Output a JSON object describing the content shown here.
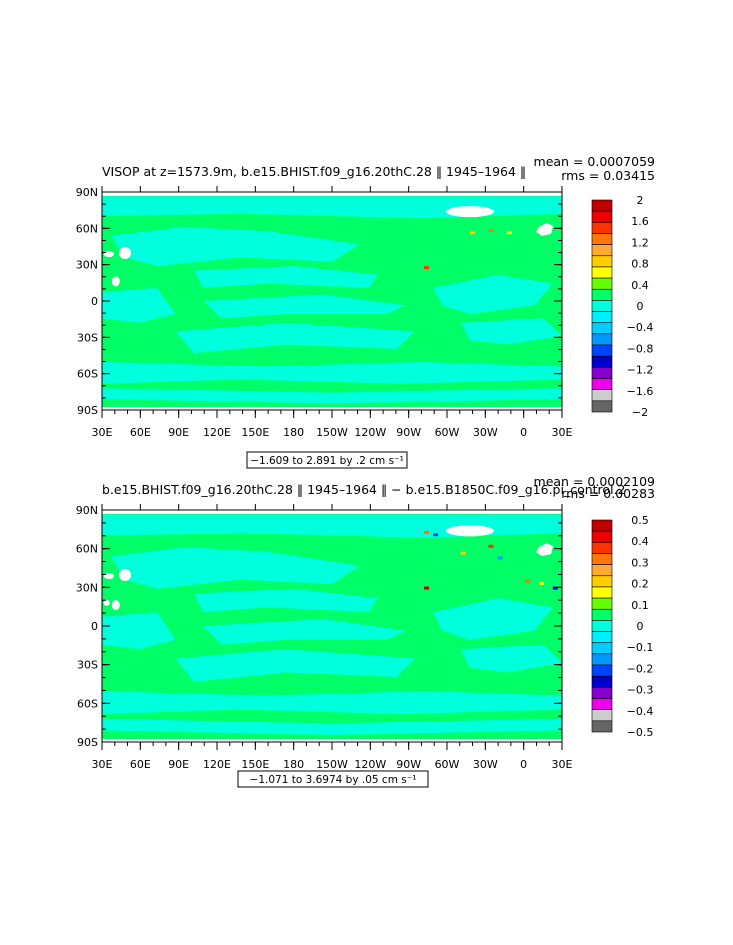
{
  "colors": {
    "ocean_base": "#00ff66",
    "ocean_alt": "#00ffdd",
    "land": "#ffffff"
  },
  "chart_data": [
    {
      "type": "heatmap",
      "title": "VISOP at z=1573.9m, b.e15.BHIST.f09_g16.20thC.28 ‖ 1945–1964 ‖",
      "stats": [
        "mean = 0.0007059",
        "rms = 0.03415"
      ],
      "y_ticks": [
        "90N",
        "60N",
        "30N",
        "0",
        "30S",
        "60S",
        "90S"
      ],
      "x_ticks": [
        "30E",
        "60E",
        "90E",
        "120E",
        "150E",
        "180",
        "150W",
        "120W",
        "90W",
        "60W",
        "30W",
        "0",
        "30E"
      ],
      "ylim": [
        -90,
        90
      ],
      "range_text": "−1.609 to 2.891 by .2 cm s⁻¹",
      "colorbar": {
        "labels": [
          "2",
          "1.6",
          "1.2",
          "0.8",
          "0.4",
          "0",
          "−0.4",
          "−0.8",
          "−1.2",
          "−1.6",
          "−2"
        ],
        "colors": [
          "#c00000",
          "#ee0000",
          "#ff3300",
          "#ff7700",
          "#ffaa33",
          "#ffcc00",
          "#ffff00",
          "#66ff00",
          "#00ff66",
          "#00ffdd",
          "#00eeff",
          "#00ccff",
          "#0099ff",
          "#0044ff",
          "#0000cc",
          "#8800cc",
          "#ee00ee",
          "#cccccc",
          "#666666"
        ]
      }
    },
    {
      "type": "heatmap",
      "title": "b.e15.BHIST.f09_g16.20thC.28 ‖ 1945–1964 ‖ − b.e15.B1850C.f09_g16.pi_control.2",
      "stats": [
        "mean = 0.0002109",
        "rms = 0.00283"
      ],
      "y_ticks": [
        "90N",
        "60N",
        "30N",
        "0",
        "30S",
        "60S",
        "90S"
      ],
      "x_ticks": [
        "30E",
        "60E",
        "90E",
        "120E",
        "150E",
        "180",
        "150W",
        "120W",
        "90W",
        "60W",
        "30W",
        "0",
        "30E"
      ],
      "ylim": [
        -90,
        90
      ],
      "range_text": "−1.071 to 3.6974 by .05 cm s⁻¹",
      "colorbar": {
        "labels": [
          "0.5",
          "0.4",
          "0.3",
          "0.2",
          "0.1",
          "0",
          "−0.1",
          "−0.2",
          "−0.3",
          "−0.4",
          "−0.5"
        ],
        "colors": [
          "#c00000",
          "#ee0000",
          "#ff3300",
          "#ff7700",
          "#ffaa33",
          "#ffcc00",
          "#ffff00",
          "#66ff00",
          "#00ff66",
          "#00ffdd",
          "#00eeff",
          "#00ccff",
          "#0099ff",
          "#0044ff",
          "#0000cc",
          "#8800cc",
          "#ee00ee",
          "#cccccc",
          "#666666"
        ]
      }
    }
  ]
}
